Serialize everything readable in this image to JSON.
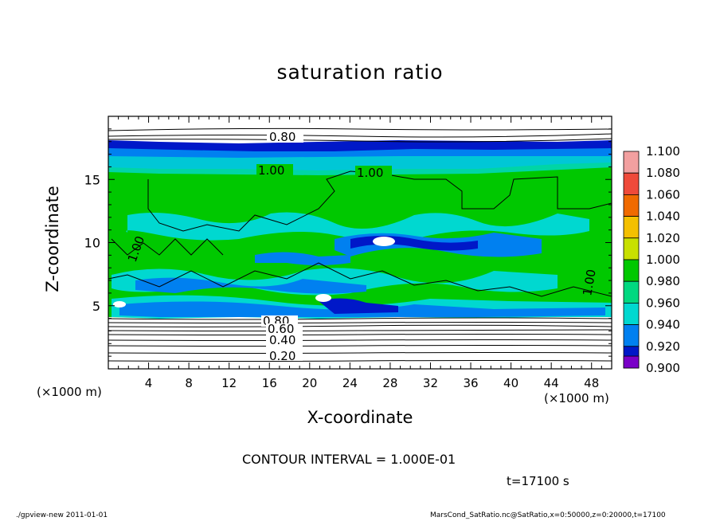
{
  "chart_data": {
    "type": "heatmap",
    "title": "saturation ratio",
    "xlabel": "X-coordinate",
    "ylabel": "Z-coordinate",
    "x_unit": "(×1000 m)",
    "xlim": [
      0,
      50
    ],
    "ylim": [
      0,
      20
    ],
    "x_ticks": [
      "4",
      "8",
      "12",
      "16",
      "20",
      "24",
      "28",
      "32",
      "36",
      "40",
      "44",
      "48"
    ],
    "y_ticks": [
      "5",
      "10",
      "15"
    ],
    "colorbar": {
      "levels": [
        "1.100",
        "1.080",
        "1.060",
        "1.040",
        "1.020",
        "1.000",
        "0.980",
        "0.960",
        "0.940",
        "0.920",
        "0.900"
      ],
      "colors": [
        "#f2a0a0",
        "#ef4a3a",
        "#f06a00",
        "#f4c000",
        "#c8e000",
        "#00c800",
        "#00d880",
        "#00d8d0",
        "#0080f0",
        "#0018c8",
        "#7a00c8"
      ]
    },
    "contour_labels": [
      "0.80",
      "1.00",
      "1.00",
      "1.00",
      "1.00",
      "0.80",
      "0.60",
      "0.40",
      "0.20"
    ],
    "contour_interval": "CONTOUR INTERVAL = 1.000E-01",
    "time": "t=17100 s"
  },
  "footer": {
    "left": "./gpview-new   2011-01-01",
    "right": "MarsCond_SatRatio.nc@SatRatio,x=0:50000,z=0:20000,t=17100"
  }
}
